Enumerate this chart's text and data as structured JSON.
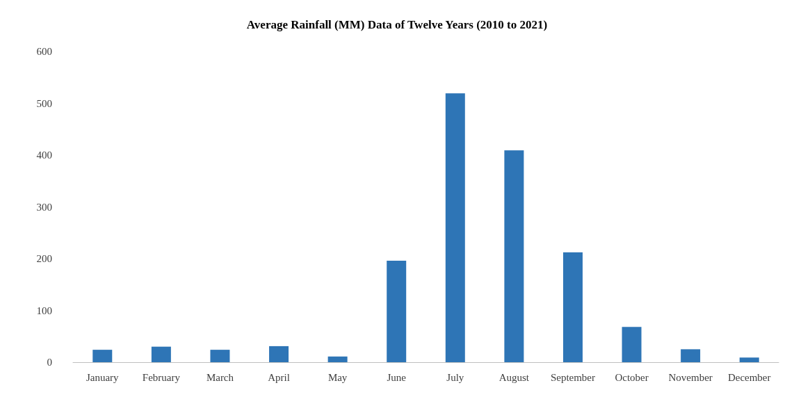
{
  "chart_data": {
    "type": "bar",
    "title": "Average Rainfall (MM) Data of Twelve Years (2010 to 2021)",
    "categories": [
      "January",
      "February",
      "March",
      "April",
      "May",
      "June",
      "July",
      "August",
      "September",
      "October",
      "November",
      "December"
    ],
    "values": [
      24,
      30,
      24,
      31,
      11,
      196,
      519,
      409,
      212,
      68,
      25,
      9
    ],
    "color": "#2e75b6",
    "ylim": [
      0,
      600
    ],
    "yticks": [
      0,
      100,
      200,
      300,
      400,
      500,
      600
    ],
    "grid": false
  }
}
